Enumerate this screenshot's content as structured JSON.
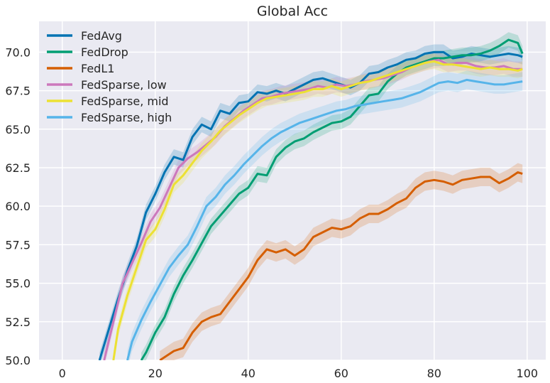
{
  "chart_data": {
    "type": "line",
    "title": "Global Acc",
    "xlabel": "",
    "ylabel": "",
    "xlim": [
      -5,
      104
    ],
    "ylim": [
      50,
      72
    ],
    "xticks": [
      0,
      20,
      40,
      60,
      80,
      100
    ],
    "yticks": [
      50.0,
      52.5,
      55.0,
      57.5,
      60.0,
      62.5,
      65.0,
      67.5,
      70.0
    ],
    "xtick_labels": [
      "0",
      "20",
      "40",
      "60",
      "80",
      "100"
    ],
    "ytick_labels": [
      "50.0",
      "52.5",
      "55.0",
      "57.5",
      "60.0",
      "62.5",
      "65.0",
      "67.5",
      "70.0"
    ],
    "grid": true,
    "background": "#eaeaf2",
    "legend_position": "top-left",
    "series": [
      {
        "name": "FedAvg",
        "color": "#0173b2",
        "band": 0.5,
        "points": [
          [
            8,
            50.0
          ],
          [
            10,
            52.0
          ],
          [
            12,
            54.0
          ],
          [
            14,
            55.8
          ],
          [
            16,
            57.4
          ],
          [
            18,
            59.6
          ],
          [
            20,
            60.8
          ],
          [
            22,
            62.2
          ],
          [
            24,
            63.2
          ],
          [
            26,
            63.0
          ],
          [
            28,
            64.5
          ],
          [
            30,
            65.3
          ],
          [
            32,
            65.0
          ],
          [
            34,
            66.2
          ],
          [
            36,
            66.0
          ],
          [
            38,
            66.7
          ],
          [
            40,
            66.8
          ],
          [
            42,
            67.4
          ],
          [
            44,
            67.3
          ],
          [
            46,
            67.5
          ],
          [
            48,
            67.3
          ],
          [
            50,
            67.6
          ],
          [
            52,
            67.9
          ],
          [
            54,
            68.2
          ],
          [
            56,
            68.3
          ],
          [
            58,
            68.1
          ],
          [
            60,
            67.9
          ],
          [
            62,
            67.7
          ],
          [
            64,
            68.0
          ],
          [
            66,
            68.6
          ],
          [
            68,
            68.7
          ],
          [
            70,
            69.0
          ],
          [
            72,
            69.2
          ],
          [
            74,
            69.5
          ],
          [
            76,
            69.6
          ],
          [
            78,
            69.9
          ],
          [
            80,
            70.0
          ],
          [
            82,
            70.0
          ],
          [
            84,
            69.6
          ],
          [
            86,
            69.7
          ],
          [
            88,
            69.9
          ],
          [
            90,
            69.8
          ],
          [
            92,
            69.7
          ],
          [
            94,
            69.8
          ],
          [
            96,
            69.9
          ],
          [
            98,
            69.8
          ],
          [
            99,
            69.7
          ]
        ]
      },
      {
        "name": "FedDrop",
        "color": "#029e73",
        "band": 0.5,
        "points": [
          [
            17,
            50.0
          ],
          [
            18,
            50.5
          ],
          [
            20,
            51.8
          ],
          [
            22,
            52.8
          ],
          [
            24,
            54.3
          ],
          [
            26,
            55.5
          ],
          [
            28,
            56.5
          ],
          [
            30,
            57.6
          ],
          [
            32,
            58.7
          ],
          [
            34,
            59.4
          ],
          [
            36,
            60.1
          ],
          [
            38,
            60.8
          ],
          [
            40,
            61.2
          ],
          [
            42,
            62.1
          ],
          [
            44,
            62.0
          ],
          [
            46,
            63.2
          ],
          [
            48,
            63.8
          ],
          [
            50,
            64.2
          ],
          [
            52,
            64.4
          ],
          [
            54,
            64.8
          ],
          [
            56,
            65.1
          ],
          [
            58,
            65.4
          ],
          [
            60,
            65.5
          ],
          [
            62,
            65.8
          ],
          [
            64,
            66.5
          ],
          [
            66,
            67.2
          ],
          [
            68,
            67.3
          ],
          [
            70,
            68.1
          ],
          [
            72,
            68.6
          ],
          [
            74,
            69.0
          ],
          [
            76,
            69.2
          ],
          [
            78,
            69.4
          ],
          [
            80,
            69.6
          ],
          [
            82,
            69.6
          ],
          [
            84,
            69.7
          ],
          [
            86,
            69.8
          ],
          [
            88,
            69.8
          ],
          [
            90,
            69.9
          ],
          [
            92,
            70.1
          ],
          [
            94,
            70.4
          ],
          [
            96,
            70.8
          ],
          [
            98,
            70.6
          ],
          [
            99,
            69.9
          ]
        ]
      },
      {
        "name": "FedL1",
        "color": "#d55e00",
        "band": 0.6,
        "points": [
          [
            21,
            50.0
          ],
          [
            24,
            50.6
          ],
          [
            26,
            50.8
          ],
          [
            28,
            51.8
          ],
          [
            30,
            52.5
          ],
          [
            32,
            52.8
          ],
          [
            34,
            53.0
          ],
          [
            36,
            53.8
          ],
          [
            38,
            54.6
          ],
          [
            40,
            55.4
          ],
          [
            42,
            56.5
          ],
          [
            44,
            57.2
          ],
          [
            46,
            57.0
          ],
          [
            48,
            57.2
          ],
          [
            50,
            56.8
          ],
          [
            52,
            57.2
          ],
          [
            54,
            58.0
          ],
          [
            56,
            58.3
          ],
          [
            58,
            58.6
          ],
          [
            60,
            58.5
          ],
          [
            62,
            58.7
          ],
          [
            64,
            59.2
          ],
          [
            66,
            59.5
          ],
          [
            68,
            59.5
          ],
          [
            70,
            59.8
          ],
          [
            72,
            60.2
          ],
          [
            74,
            60.5
          ],
          [
            76,
            61.2
          ],
          [
            78,
            61.6
          ],
          [
            80,
            61.7
          ],
          [
            82,
            61.6
          ],
          [
            84,
            61.4
          ],
          [
            86,
            61.7
          ],
          [
            88,
            61.8
          ],
          [
            90,
            61.9
          ],
          [
            92,
            61.9
          ],
          [
            94,
            61.5
          ],
          [
            96,
            61.8
          ],
          [
            98,
            62.2
          ],
          [
            99,
            62.1
          ]
        ]
      },
      {
        "name": "FedSparse, low",
        "color": "#cc78bc",
        "band": 0.5,
        "points": [
          [
            9,
            50.0
          ],
          [
            11,
            52.5
          ],
          [
            13,
            55.0
          ],
          [
            15,
            56.3
          ],
          [
            17,
            57.6
          ],
          [
            19,
            59.0
          ],
          [
            21,
            59.9
          ],
          [
            23,
            61.2
          ],
          [
            25,
            62.5
          ],
          [
            27,
            63.1
          ],
          [
            29,
            63.5
          ],
          [
            31,
            64.0
          ],
          [
            33,
            64.5
          ],
          [
            35,
            65.2
          ],
          [
            37,
            65.7
          ],
          [
            39,
            66.2
          ],
          [
            41,
            66.6
          ],
          [
            43,
            67.0
          ],
          [
            45,
            67.1
          ],
          [
            47,
            67.3
          ],
          [
            49,
            67.4
          ],
          [
            51,
            67.5
          ],
          [
            53,
            67.6
          ],
          [
            55,
            67.8
          ],
          [
            57,
            67.7
          ],
          [
            59,
            67.9
          ],
          [
            61,
            67.8
          ],
          [
            63,
            67.9
          ],
          [
            65,
            68.1
          ],
          [
            67,
            68.2
          ],
          [
            69,
            68.3
          ],
          [
            71,
            68.5
          ],
          [
            73,
            68.7
          ],
          [
            75,
            69.0
          ],
          [
            77,
            69.2
          ],
          [
            79,
            69.4
          ],
          [
            81,
            69.5
          ],
          [
            83,
            69.2
          ],
          [
            85,
            69.3
          ],
          [
            87,
            69.3
          ],
          [
            89,
            69.1
          ],
          [
            91,
            69.0
          ],
          [
            93,
            69.0
          ],
          [
            95,
            69.1
          ],
          [
            97,
            68.9
          ],
          [
            99,
            68.9
          ]
        ]
      },
      {
        "name": "FedSparse, mid",
        "color": "#ece133",
        "band": 0.5,
        "points": [
          [
            11,
            50.0
          ],
          [
            12,
            52.0
          ],
          [
            14,
            54.2
          ],
          [
            16,
            56.0
          ],
          [
            18,
            57.8
          ],
          [
            20,
            58.5
          ],
          [
            22,
            59.8
          ],
          [
            24,
            61.4
          ],
          [
            26,
            62.0
          ],
          [
            28,
            62.8
          ],
          [
            30,
            63.6
          ],
          [
            32,
            64.2
          ],
          [
            34,
            64.9
          ],
          [
            36,
            65.4
          ],
          [
            38,
            65.9
          ],
          [
            40,
            66.3
          ],
          [
            42,
            66.7
          ],
          [
            44,
            67.0
          ],
          [
            46,
            67.1
          ],
          [
            48,
            67.2
          ],
          [
            50,
            67.3
          ],
          [
            52,
            67.4
          ],
          [
            54,
            67.6
          ],
          [
            56,
            67.6
          ],
          [
            58,
            67.8
          ],
          [
            60,
            67.6
          ],
          [
            62,
            67.8
          ],
          [
            64,
            68.0
          ],
          [
            66,
            68.1
          ],
          [
            68,
            68.3
          ],
          [
            70,
            68.5
          ],
          [
            72,
            68.7
          ],
          [
            74,
            68.9
          ],
          [
            76,
            69.1
          ],
          [
            78,
            69.3
          ],
          [
            80,
            69.4
          ],
          [
            82,
            69.2
          ],
          [
            84,
            69.2
          ],
          [
            86,
            69.1
          ],
          [
            88,
            69.0
          ],
          [
            90,
            68.9
          ],
          [
            92,
            69.0
          ],
          [
            94,
            68.9
          ],
          [
            96,
            68.9
          ],
          [
            98,
            68.8
          ],
          [
            99,
            68.9
          ]
        ]
      },
      {
        "name": "FedSparse, high",
        "color": "#56b4e9",
        "band": 0.6,
        "points": [
          [
            14,
            50.0
          ],
          [
            15,
            51.2
          ],
          [
            17,
            52.6
          ],
          [
            19,
            53.8
          ],
          [
            21,
            54.9
          ],
          [
            23,
            56.0
          ],
          [
            25,
            56.8
          ],
          [
            27,
            57.5
          ],
          [
            29,
            58.7
          ],
          [
            31,
            60.0
          ],
          [
            33,
            60.6
          ],
          [
            35,
            61.4
          ],
          [
            37,
            62.0
          ],
          [
            39,
            62.7
          ],
          [
            41,
            63.3
          ],
          [
            43,
            63.9
          ],
          [
            45,
            64.4
          ],
          [
            47,
            64.8
          ],
          [
            49,
            65.1
          ],
          [
            51,
            65.4
          ],
          [
            53,
            65.6
          ],
          [
            55,
            65.8
          ],
          [
            57,
            66.0
          ],
          [
            59,
            66.2
          ],
          [
            61,
            66.3
          ],
          [
            63,
            66.5
          ],
          [
            65,
            66.6
          ],
          [
            67,
            66.7
          ],
          [
            69,
            66.8
          ],
          [
            71,
            66.9
          ],
          [
            73,
            67.0
          ],
          [
            75,
            67.2
          ],
          [
            77,
            67.4
          ],
          [
            79,
            67.7
          ],
          [
            81,
            68.0
          ],
          [
            83,
            68.1
          ],
          [
            85,
            68.0
          ],
          [
            87,
            68.2
          ],
          [
            89,
            68.1
          ],
          [
            91,
            68.0
          ],
          [
            93,
            67.9
          ],
          [
            95,
            67.9
          ],
          [
            97,
            68.0
          ],
          [
            99,
            68.1
          ]
        ]
      }
    ]
  }
}
